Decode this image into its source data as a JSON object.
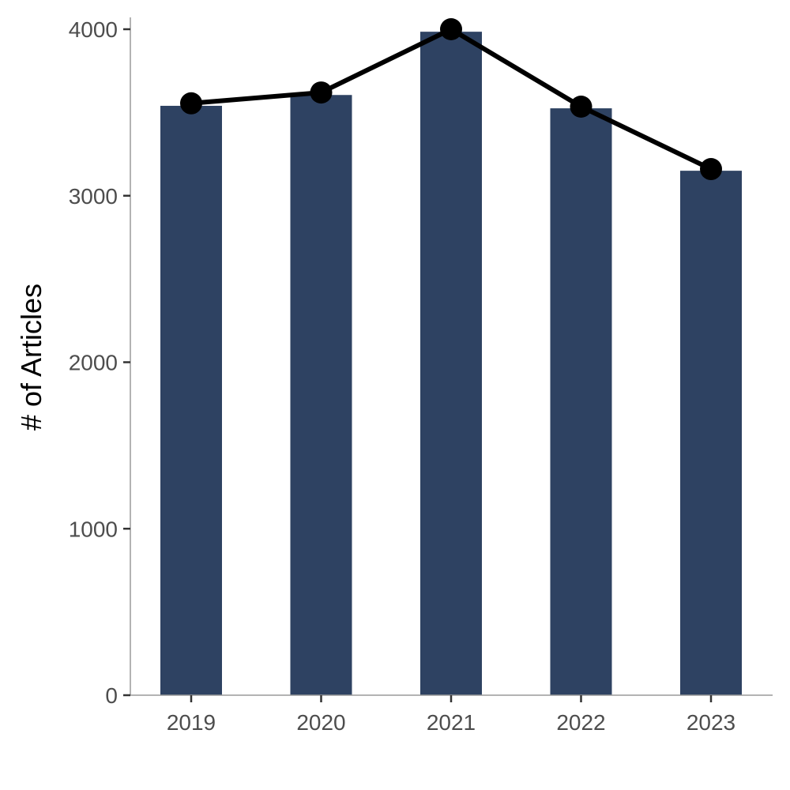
{
  "chart_data": {
    "type": "bar",
    "categories": [
      "2019",
      "2020",
      "2021",
      "2022",
      "2023"
    ],
    "values": [
      3540,
      3605,
      3985,
      3525,
      3150
    ],
    "line_overlay": {
      "values": [
        3555,
        3620,
        4000,
        3535,
        3160
      ]
    },
    "ylabel": "# of Articles",
    "xlabel": "",
    "ylim": [
      0,
      4000
    ],
    "yticks": [
      0,
      1000,
      2000,
      3000,
      4000
    ],
    "ytick_labels": [
      "0",
      "1000",
      "2000",
      "3000",
      "4000"
    ],
    "grid": false,
    "legend": "none",
    "colors": {
      "bar": "#2e4262",
      "line": "#000000",
      "point": "#000000",
      "axis": "#9a9a9a",
      "tick": "#333333"
    }
  }
}
